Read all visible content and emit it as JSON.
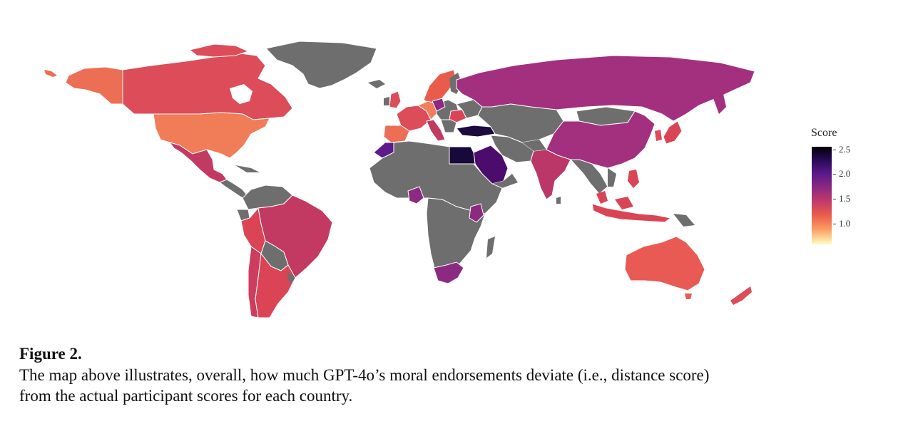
{
  "legend": {
    "title": "Score",
    "ticks": [
      "2.5",
      "2.0",
      "1.5",
      "1.0"
    ],
    "colors": {
      "no_data": "#6e6e6e",
      "border": "#ffffff"
    }
  },
  "figure": {
    "title": "Figure 2.",
    "caption_line1": "The map above illustrates, overall, how much GPT-4o’s moral endorsements deviate (i.e., distance score)",
    "caption_line2": "from the actual participant scores for each country."
  }
}
